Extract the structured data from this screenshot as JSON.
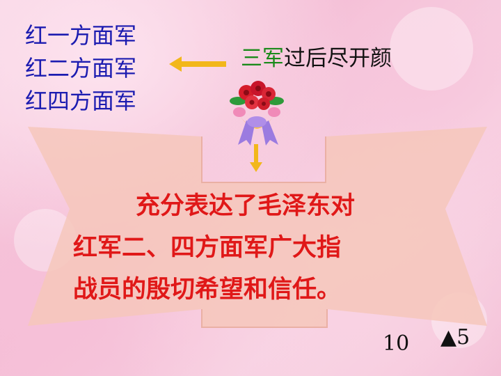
{
  "armies": [
    "红一方面军",
    "红二方面军",
    "红四方面军"
  ],
  "headline": {
    "green": "三军",
    "rest": "过后尽开颜"
  },
  "body_lines": [
    "充分表达了毛泽东对",
    "红军二、四方面军广大指",
    "战员的殷切希望和信任。"
  ],
  "page_number": "10",
  "marker": "▲5",
  "colors": {
    "army_text": "#1b1bb0",
    "headline_green": "#1a8a1a",
    "body_red": "#e01818",
    "arrow_yellow": "#f2b71a",
    "scroll": "#f6c7bb"
  }
}
